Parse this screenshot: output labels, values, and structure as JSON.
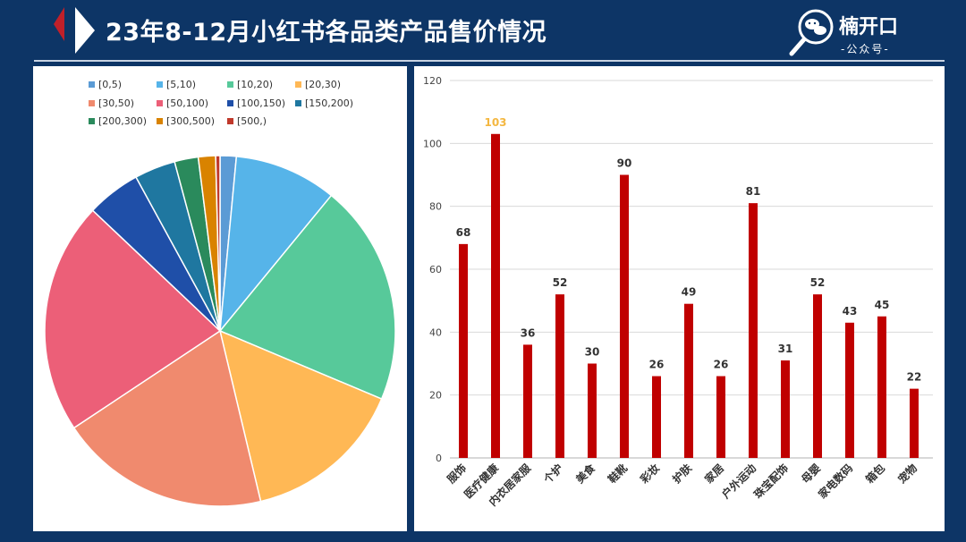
{
  "header": {
    "title": "23年8-12月小红书各品类产品售价情况",
    "brand_name": "楠开口",
    "brand_sub": "-公众号-"
  },
  "colors": {
    "background": "#0d3566",
    "bar": "#c00000",
    "highlight_label": "#f4b740"
  },
  "chart_data": [
    {
      "type": "pie",
      "categories": [
        "[0,5)",
        "[5,10)",
        "[10,20)",
        "[20,30)",
        "[30,50)",
        "[50,100)",
        "[100,150)",
        "[150,200)",
        "[200,300)",
        "[300,500)",
        "[500,)"
      ],
      "values": [
        1.5,
        9.5,
        20.5,
        15,
        19.5,
        21.5,
        5,
        3.8,
        2.2,
        1.6,
        0.4
      ],
      "colors": [
        "#5b9bd5",
        "#56b4e9",
        "#57c99a",
        "#ffb855",
        "#f08a6e",
        "#ec5f78",
        "#1f4fa8",
        "#1f77a0",
        "#2a8a5c",
        "#d98300",
        "#c0392b"
      ],
      "legend_position": "top"
    },
    {
      "type": "bar",
      "categories": [
        "服饰",
        "医疗健康",
        "内衣居家服",
        "个护",
        "美食",
        "鞋靴",
        "彩妆",
        "护肤",
        "家居",
        "户外运动",
        "珠宝配饰",
        "母婴",
        "家电数码",
        "箱包",
        "宠物"
      ],
      "values": [
        68,
        103,
        36,
        52,
        30,
        90,
        26,
        49,
        26,
        81,
        31,
        52,
        43,
        45,
        22
      ],
      "data_labels": [
        "68",
        "103",
        "36",
        "52",
        "30",
        "90",
        "26",
        "49",
        "26",
        "81",
        "31",
        "52",
        "43",
        "45",
        "22"
      ],
      "highlight_index": 1,
      "ylim": [
        0,
        120
      ],
      "yticks": [
        0,
        20,
        40,
        60,
        80,
        100,
        120
      ],
      "grid": true
    }
  ]
}
